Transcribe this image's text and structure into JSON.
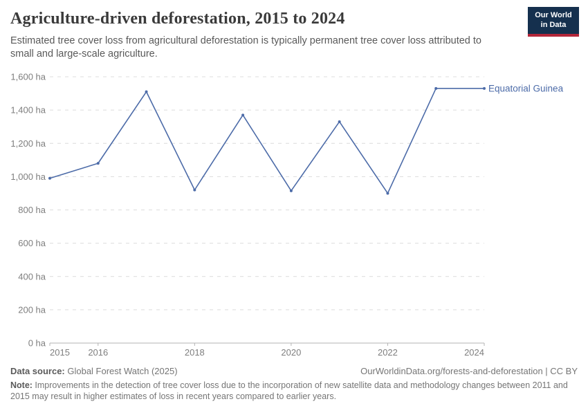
{
  "header": {
    "title": "Agriculture-driven deforestation, 2015 to 2024",
    "subtitle": "Estimated tree cover loss from agricultural deforestation is typically permanent tree cover loss attributed to small and large-scale agriculture.",
    "logo": {
      "line1": "Our World",
      "line2": "in Data",
      "bg_color": "#15304e",
      "accent_color": "#b32639"
    }
  },
  "chart_data": {
    "type": "line",
    "title": "Agriculture-driven deforestation, 2015 to 2024",
    "x": [
      2015,
      2016,
      2017,
      2018,
      2019,
      2020,
      2021,
      2022,
      2023,
      2024
    ],
    "series": [
      {
        "name": "Equatorial Guinea",
        "values": [
          990,
          1080,
          1510,
          920,
          1370,
          915,
          1330,
          900,
          1530,
          1530
        ],
        "color": "#4c6ba8"
      }
    ],
    "xlabel": "",
    "ylabel": "",
    "unit": "ha",
    "xlim": [
      2015,
      2024
    ],
    "ylim": [
      0,
      1600
    ],
    "y_ticks": [
      {
        "value": 0,
        "label": "0 ha"
      },
      {
        "value": 200,
        "label": "200 ha"
      },
      {
        "value": 400,
        "label": "400 ha"
      },
      {
        "value": 600,
        "label": "600 ha"
      },
      {
        "value": 800,
        "label": "800 ha"
      },
      {
        "value": 1000,
        "label": "1,000 ha"
      },
      {
        "value": 1200,
        "label": "1,200 ha"
      },
      {
        "value": 1400,
        "label": "1,400 ha"
      },
      {
        "value": 1600,
        "label": "1,600 ha"
      }
    ],
    "x_ticks": [
      {
        "value": 2015,
        "label": "2015"
      },
      {
        "value": 2016,
        "label": "2016"
      },
      {
        "value": 2018,
        "label": "2018"
      },
      {
        "value": 2020,
        "label": "2020"
      },
      {
        "value": 2022,
        "label": "2022"
      },
      {
        "value": 2024,
        "label": "2024"
      }
    ],
    "grid": "horizontal-dashed",
    "legend_position": "end-of-line",
    "end_label": "Equatorial Guinea",
    "grid_color": "#dcdcdc",
    "axis_color": "#b3b3b3",
    "tick_text_color": "#7e7e7e"
  },
  "footer": {
    "data_source_label": "Data source:",
    "data_source_value": " Global Forest Watch (2025)",
    "link_text": "OurWorldinData.org/forests-and-deforestation | CC BY",
    "note_label": "Note:",
    "note_value": " Improvements in the detection of tree cover loss due to the incorporation of new satellite data and methodology changes between 2011 and 2015 may result in higher estimates of loss in recent years compared to earlier years."
  }
}
